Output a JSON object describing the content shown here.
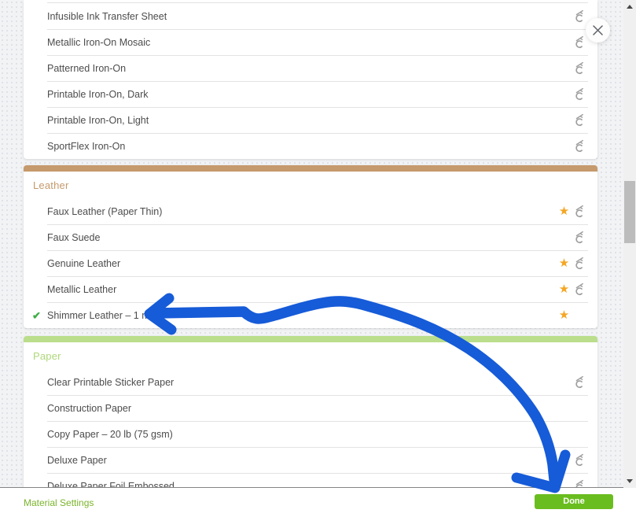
{
  "modal": {
    "sections": [
      {
        "id": "iron-on",
        "label": "",
        "accent_bar_color": "",
        "accent_text_color": "",
        "items": [
          {
            "label": "Infusible Ink Transfer Sheet",
            "starred": false,
            "machine_icon": true,
            "selected": false
          },
          {
            "label": "Metallic Iron-On Mosaic",
            "starred": false,
            "machine_icon": true,
            "selected": false
          },
          {
            "label": "Patterned Iron-On",
            "starred": false,
            "machine_icon": true,
            "selected": false
          },
          {
            "label": "Printable Iron-On, Dark",
            "starred": false,
            "machine_icon": true,
            "selected": false
          },
          {
            "label": "Printable Iron-On, Light",
            "starred": false,
            "machine_icon": true,
            "selected": false
          },
          {
            "label": "SportFlex Iron-On",
            "starred": false,
            "machine_icon": true,
            "selected": false
          }
        ]
      },
      {
        "id": "leather",
        "label": "Leather",
        "accent_bar_color": "#c59a6c",
        "accent_text_color": "#c59a6c",
        "items": [
          {
            "label": "Faux Leather (Paper Thin)",
            "starred": true,
            "machine_icon": true,
            "selected": false
          },
          {
            "label": "Faux Suede",
            "starred": false,
            "machine_icon": true,
            "selected": false
          },
          {
            "label": "Genuine Leather",
            "starred": true,
            "machine_icon": true,
            "selected": false
          },
          {
            "label": "Metallic Leather",
            "starred": true,
            "machine_icon": true,
            "selected": false
          },
          {
            "label": "Shimmer Leather – 1 mm",
            "starred": true,
            "machine_icon": false,
            "selected": true
          }
        ]
      },
      {
        "id": "paper",
        "label": "Paper",
        "accent_bar_color": "#bade8b",
        "accent_text_color": "#aed87a",
        "items": [
          {
            "label": "Clear Printable Sticker Paper",
            "starred": false,
            "machine_icon": true,
            "selected": false
          },
          {
            "label": "Construction Paper",
            "starred": false,
            "machine_icon": false,
            "selected": false
          },
          {
            "label": "Copy Paper – 20 lb (75 gsm)",
            "starred": false,
            "machine_icon": false,
            "selected": false
          },
          {
            "label": "Deluxe Paper",
            "starred": false,
            "machine_icon": true,
            "selected": false
          },
          {
            "label": "Deluxe Paper Foil Embossed",
            "starred": false,
            "machine_icon": true,
            "selected": false
          }
        ]
      }
    ]
  },
  "footer": {
    "material_settings_label": "Material Settings",
    "done_label": "Done"
  },
  "glyphs": {
    "star": "★",
    "check": "✔"
  },
  "icons": {
    "close": "x-in-circle",
    "favorite": "orange-star",
    "selected": "green-check",
    "machine_compatibility": "cricut-c-logo",
    "scroll_up": "triangle-up",
    "scroll_down": "triangle-down"
  },
  "annotation": {
    "type": "hand-drawn-arrow",
    "color": "#165bd8",
    "points_from": "Done button",
    "points_to": "Shimmer Leather – 1 mm"
  },
  "colors": {
    "leather_accent": "#c59a6c",
    "paper_accent": "#bade8b",
    "star": "#f5a623",
    "check_green": "#3fae47",
    "done_button": "#6abd1f",
    "material_settings_link": "#7ab42c",
    "row_text": "#4c4c4c",
    "machine_icon_gray": "#9e9e9e",
    "annotation_blue": "#165bd8"
  }
}
